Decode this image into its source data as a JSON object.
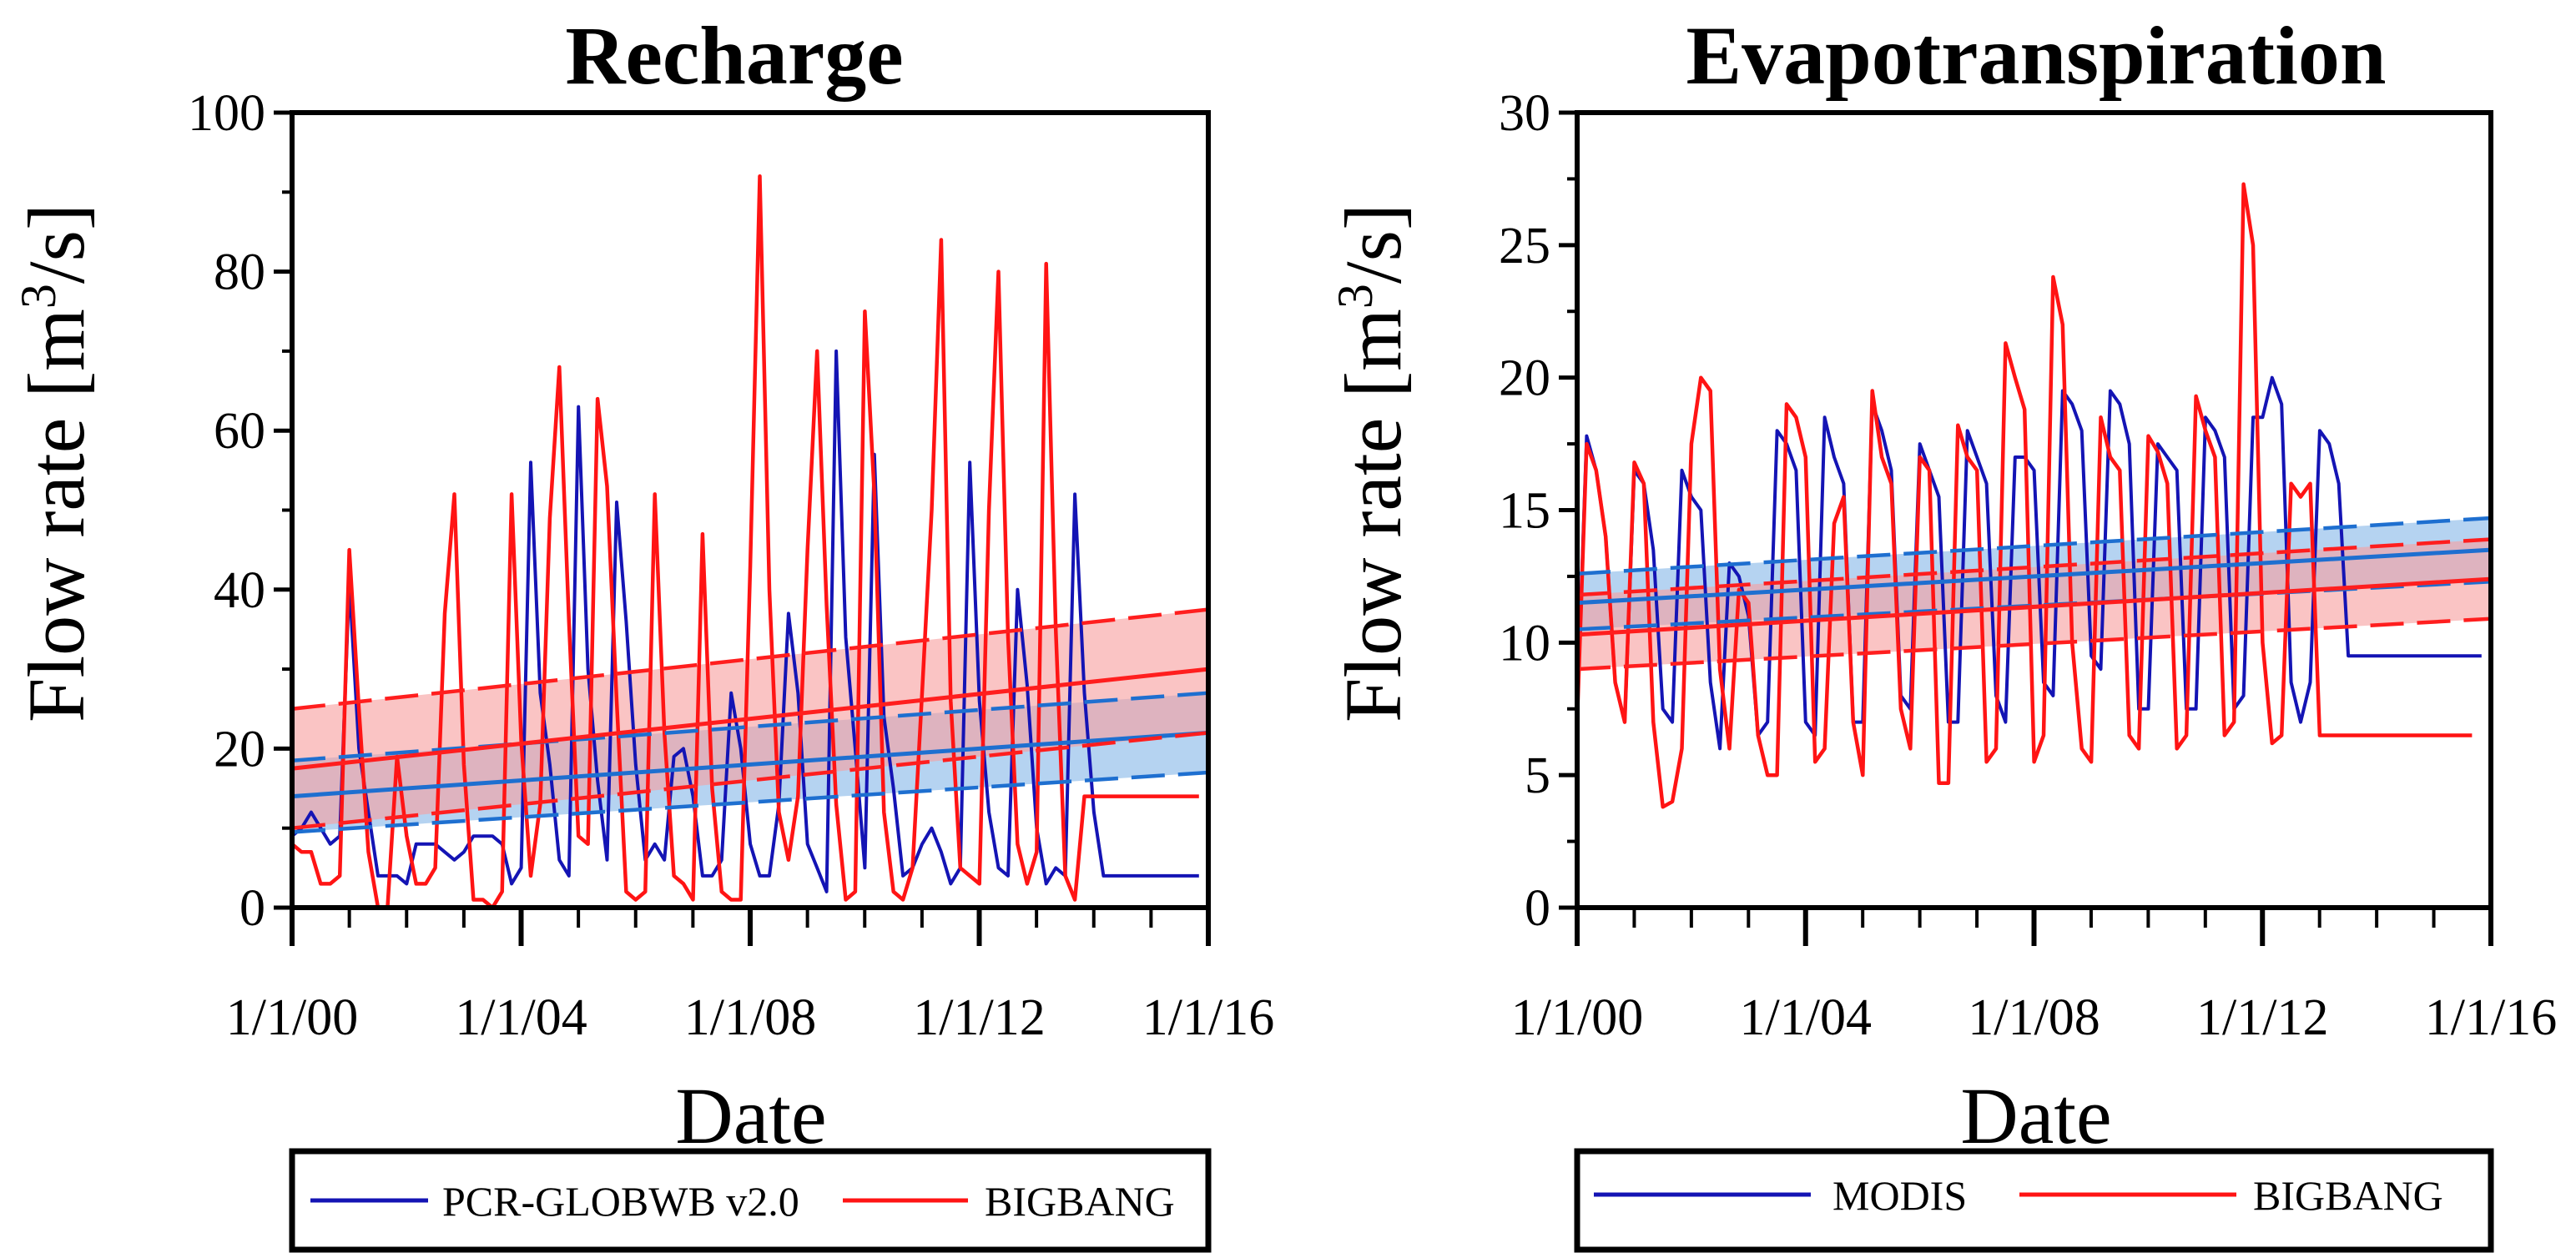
{
  "colors": {
    "blue_series": "#1414b4",
    "red_series": "#ff1414",
    "blue_trend": "#1e6fd0",
    "red_trend": "#ff1e1e",
    "blue_band": "#88b8e8",
    "red_band": "#f7a0a0"
  },
  "chart_data": [
    {
      "type": "line",
      "title": "Recharge",
      "xlabel": "Date",
      "ylabel_main": "Flow rate [m",
      "ylabel_sup": "3",
      "ylabel_tail": "/s]",
      "ylim": [
        0,
        100
      ],
      "xlim": [
        2000,
        2016
      ],
      "y_ticks": [
        0,
        20,
        40,
        60,
        80,
        100
      ],
      "x_ticks": [
        2000,
        2004,
        2008,
        2012,
        2016
      ],
      "x_tick_labels": [
        "1/1/00",
        "1/1/04",
        "1/1/08",
        "1/1/12",
        "1/1/16"
      ],
      "legend": [
        "PCR-GLOBWB v2.0",
        "BIGBANG"
      ],
      "series": [
        {
          "name": "PCR-GLOBWB v2.0",
          "color_key": "blue_series",
          "x_start": 2000,
          "x_step": 0.1667,
          "values": [
            9,
            10,
            12,
            10,
            8,
            9,
            41,
            20,
            12,
            4,
            4,
            4,
            3,
            8,
            8,
            8,
            7,
            6,
            7,
            9,
            9,
            9,
            8,
            3,
            5,
            56,
            27,
            18,
            6,
            4,
            63,
            30,
            16,
            6,
            51,
            36,
            18,
            6,
            8,
            6,
            19,
            20,
            14,
            4,
            4,
            6,
            27,
            20,
            8,
            4,
            4,
            13,
            37,
            27,
            8,
            5,
            2,
            70,
            34,
            20,
            5,
            57,
            24,
            15,
            4,
            5,
            8,
            10,
            7,
            3,
            5,
            56,
            26,
            12,
            5,
            4,
            40,
            28,
            10,
            3,
            5,
            4,
            52,
            27,
            12,
            4,
            4,
            4,
            4,
            4,
            4,
            4,
            4,
            4,
            4,
            4
          ]
        },
        {
          "name": "BIGBANG",
          "color_key": "red_series",
          "x_start": 2000,
          "x_step": 0.1667,
          "values": [
            8,
            7,
            7,
            3,
            3,
            4,
            45,
            25,
            7,
            0,
            0,
            19,
            9,
            3,
            3,
            5,
            37,
            52,
            18,
            1,
            1,
            0,
            2,
            52,
            21,
            4,
            13,
            49,
            68,
            36,
            9,
            8,
            64,
            53,
            26,
            2,
            1,
            2,
            52,
            22,
            4,
            3,
            1,
            47,
            15,
            2,
            1,
            1,
            43,
            92,
            40,
            12,
            6,
            14,
            45,
            70,
            38,
            13,
            1,
            2,
            75,
            52,
            12,
            2,
            1,
            5,
            27,
            50,
            84,
            26,
            5,
            4,
            3,
            50,
            80,
            34,
            8,
            3,
            7,
            81,
            35,
            4,
            1,
            14,
            14,
            14,
            14,
            14,
            14,
            14,
            14,
            14,
            14,
            14,
            14,
            14
          ]
        }
      ],
      "trends": [
        {
          "name": "PCR-GLOBWB v2.0 trend",
          "color_key": "blue_trend",
          "y_start": 14,
          "y_end": 22,
          "ci_start": [
            9.5,
            18.5
          ],
          "ci_end": [
            17,
            27
          ]
        },
        {
          "name": "BIGBANG trend",
          "color_key": "red_trend",
          "y_start": 17.5,
          "y_end": 30,
          "ci_start": [
            10,
            25
          ],
          "ci_end": [
            22,
            37.5
          ]
        }
      ]
    },
    {
      "type": "line",
      "title": "Evapotranspiration",
      "xlabel": "Date",
      "ylabel_main": "Flow rate [m",
      "ylabel_sup": "3",
      "ylabel_tail": "/s]",
      "ylim": [
        0,
        30
      ],
      "xlim": [
        2000,
        2016
      ],
      "y_ticks": [
        0,
        5,
        10,
        15,
        20,
        25,
        30
      ],
      "x_ticks": [
        2000,
        2004,
        2008,
        2012,
        2016
      ],
      "x_tick_labels": [
        "1/1/00",
        "1/1/04",
        "1/1/08",
        "1/1/12",
        "1/1/16"
      ],
      "legend": [
        "MODIS",
        "BIGBANG"
      ],
      "series": [
        {
          "name": "MODIS",
          "color_key": "blue_series",
          "x_start": 2000,
          "x_step": 0.1667,
          "values": [
            7.5,
            17.8,
            16.5,
            14,
            8.5,
            7,
            16.5,
            16,
            13.5,
            7.5,
            7,
            16.5,
            15.5,
            15,
            8.5,
            6,
            13,
            12.5,
            11,
            6.5,
            7,
            18,
            17.5,
            16.5,
            7,
            6.5,
            18.5,
            17,
            16,
            7,
            7,
            19,
            18,
            16.5,
            8,
            7.5,
            17.5,
            16.5,
            15.5,
            7,
            7,
            18,
            17,
            16,
            8,
            7,
            17,
            17,
            16.5,
            8.5,
            8,
            19.5,
            19,
            18,
            9.5,
            9,
            19.5,
            19,
            17.5,
            7.5,
            7.5,
            17.5,
            17,
            16.5,
            7.5,
            7.5,
            18.5,
            18,
            17,
            7.5,
            8,
            18.5,
            18.5,
            20,
            19,
            8.5,
            7,
            8.5,
            18,
            17.5,
            16,
            9.5,
            9.5,
            9.5,
            9.5,
            9.5,
            9.5,
            9.5,
            9.5,
            9.5,
            9.5,
            9.5,
            9.5,
            9.5,
            9.5,
            9.5
          ]
        },
        {
          "name": "BIGBANG",
          "color_key": "red_series",
          "x_start": 2000,
          "x_step": 0.1667,
          "values": [
            7,
            17.5,
            16.5,
            14,
            8.5,
            7,
            16.8,
            16,
            7,
            3.8,
            4,
            6,
            17.5,
            20,
            19.5,
            9,
            6,
            12,
            11.5,
            6.5,
            5,
            5,
            19,
            18.5,
            17,
            5.5,
            6,
            14.5,
            15.5,
            7,
            5,
            19.5,
            17,
            16,
            7.5,
            6,
            17,
            16.5,
            4.7,
            4.7,
            18.2,
            17,
            16.5,
            5.5,
            6,
            21.3,
            20,
            18.8,
            5.5,
            6.5,
            23.8,
            22,
            10,
            6,
            5.5,
            18.5,
            17,
            16.5,
            6.5,
            6,
            17.8,
            17.2,
            16,
            6,
            6.5,
            19.3,
            18,
            17,
            6.5,
            7,
            27.3,
            25,
            10,
            6.2,
            6.5,
            16,
            15.5,
            16,
            6.5,
            6.5,
            6.5,
            6.5,
            6.5,
            6.5,
            6.5,
            6.5,
            6.5,
            6.5,
            6.5,
            6.5,
            6.5,
            6.5,
            6.5,
            6.5,
            6.5
          ]
        }
      ],
      "trends": [
        {
          "name": "MODIS trend",
          "color_key": "blue_trend",
          "y_start": 11.5,
          "y_end": 13.5,
          "ci_start": [
            10.5,
            12.6
          ],
          "ci_end": [
            12.3,
            14.7
          ]
        },
        {
          "name": "BIGBANG trend",
          "color_key": "red_trend",
          "y_start": 10.3,
          "y_end": 12.4,
          "ci_start": [
            9,
            11.8
          ],
          "ci_end": [
            10.9,
            13.9
          ]
        }
      ]
    }
  ]
}
